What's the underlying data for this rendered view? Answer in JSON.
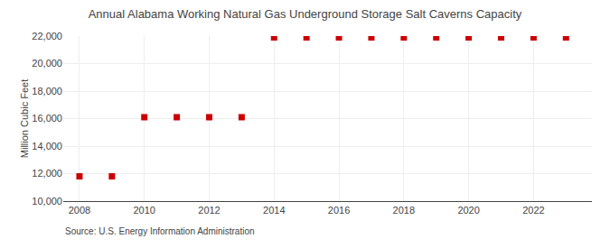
{
  "chart_data": {
    "type": "scatter",
    "title": "Annual Alabama Working Natural Gas Underground Storage Salt Caverns Capacity",
    "ylabel": "Million Cubic Feet",
    "annotations": [
      "Source: U.S. Energy Information Administration"
    ],
    "x": [
      2008,
      2009,
      2010,
      2011,
      2012,
      2013,
      2014,
      2015,
      2016,
      2017,
      2018,
      2019,
      2020,
      2021,
      2022,
      2023
    ],
    "values": [
      11800,
      11800,
      16100,
      16100,
      16100,
      16100,
      21900,
      21900,
      21900,
      21900,
      21900,
      21900,
      21900,
      21900,
      21900,
      21900
    ],
    "color": "#cc0000",
    "marker": "square",
    "xlim": [
      2007.5,
      2023.8
    ],
    "xticks": [
      2008,
      2010,
      2012,
      2014,
      2016,
      2018,
      2020,
      2022
    ],
    "ylim": [
      10000,
      22000
    ],
    "yticks": [
      {
        "value": 10000,
        "label": "10,000"
      },
      {
        "value": 12000,
        "label": "12,000"
      },
      {
        "value": 14000,
        "label": "14,000"
      },
      {
        "value": 16000,
        "label": "16,000"
      },
      {
        "value": 18000,
        "label": "18,000"
      },
      {
        "value": 20000,
        "label": "20,000"
      },
      {
        "value": 22000,
        "label": "22,000"
      }
    ],
    "grid": true
  }
}
